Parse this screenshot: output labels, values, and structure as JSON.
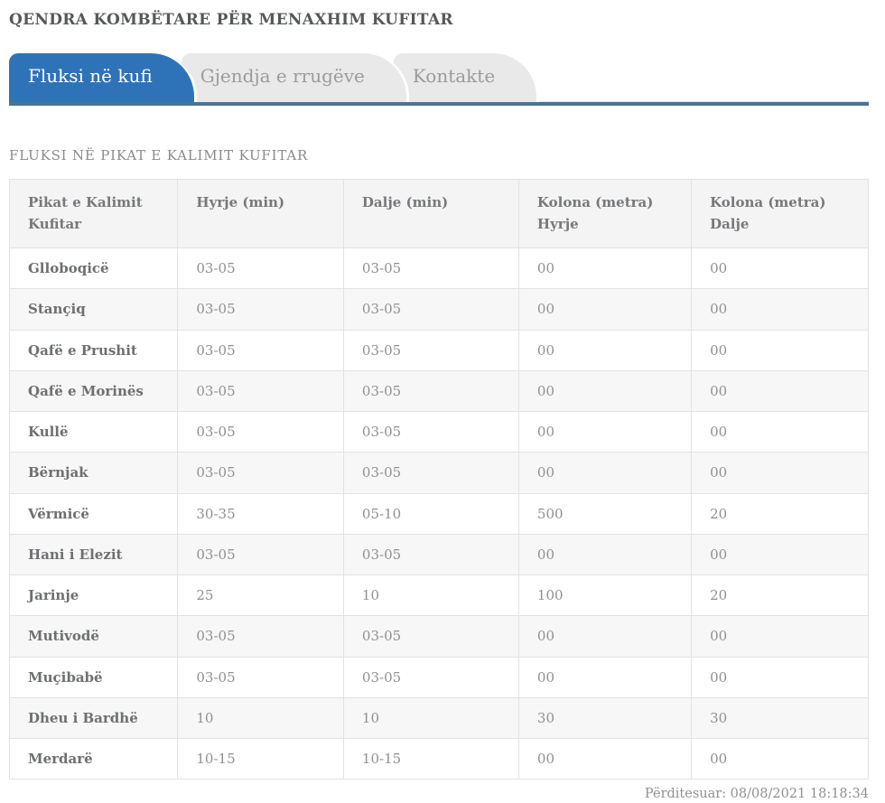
{
  "page": {
    "title": "QENDRA KOMBËTARE PËR MENAXHIM KUFITAR"
  },
  "tabs": [
    {
      "label": "Fluksi në kufi",
      "active": true
    },
    {
      "label": "Gjendja e rrugëve",
      "active": false
    },
    {
      "label": "Kontakte",
      "active": false
    }
  ],
  "content": {
    "heading": "FLUKSI NË PIKAT E KALIMIT KUFITAR"
  },
  "table": {
    "columns": [
      "Pikat e Kalimit\nKufitar",
      "Hyrje (min)",
      "Dalje (min)",
      "Kolona (metra)\nHyrje",
      "Kolona (metra)\nDalje"
    ],
    "rows": [
      [
        "Glloboqicë",
        "03-05",
        "03-05",
        "00",
        "00"
      ],
      [
        "Stançiq",
        "03-05",
        "03-05",
        "00",
        "00"
      ],
      [
        "Qafë e Prushit",
        "03-05",
        "03-05",
        "00",
        "00"
      ],
      [
        "Qafë e Morinës",
        "03-05",
        "03-05",
        "00",
        "00"
      ],
      [
        "Kullë",
        "03-05",
        "03-05",
        "00",
        "00"
      ],
      [
        "Bërnjak",
        "03-05",
        "03-05",
        "00",
        "00"
      ],
      [
        "Vërmicë",
        "30-35",
        "05-10",
        "500",
        "20"
      ],
      [
        "Hani i Elezit",
        "03-05",
        "03-05",
        "00",
        "00"
      ],
      [
        "Jarinje",
        "25",
        "10",
        "100",
        "20"
      ],
      [
        "Mutivodë",
        "03-05",
        "03-05",
        "00",
        "00"
      ],
      [
        "Muçibabë",
        "03-05",
        "03-05",
        "00",
        "00"
      ],
      [
        "Dheu i Bardhë",
        "10",
        "10",
        "30",
        "30"
      ],
      [
        "Merdarë",
        "10-15",
        "10-15",
        "00",
        "00"
      ]
    ]
  },
  "footer": {
    "updated": "Përditesuar: 08/08/2021 18:18:34"
  },
  "colors": {
    "tab_active_bg": "#2e73b8",
    "tab_active_text": "#ffffff",
    "tab_inactive_bg": "#e9e9e9",
    "tab_inactive_text": "#9b9b9b",
    "tab_underline": "#4b7392",
    "table_header_bg": "#f4f4f4",
    "row_stripe_bg": "#f7f7f7",
    "table_border": "#e2e2e2",
    "title_text": "#565759",
    "body_text": "#909092"
  }
}
